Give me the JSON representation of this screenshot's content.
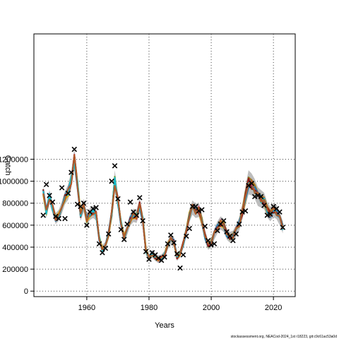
{
  "chart_data": {
    "type": "line",
    "xlabel": "Years",
    "ylabel": "Catch",
    "xlim": [
      1943,
      2027
    ],
    "ylim": [
      -50000,
      2340000
    ],
    "x_ticks": [
      1960,
      1980,
      2000,
      2020
    ],
    "y_ticks": [
      0,
      200000,
      400000,
      600000,
      800000,
      1000000,
      1200000
    ],
    "y_tick_labels": [
      "0",
      "200000",
      "400000",
      "600000",
      "800000",
      "1000000",
      "1200000"
    ],
    "grid": true,
    "credit": "stockassessment.org, NEACod-2024_1st r18223, git:c9c61ac53a0d",
    "band_color": "#bdbdbd",
    "series_colors": [
      "#1b9e77",
      "#7570b3",
      "#e7298a",
      "#66a61e",
      "#e6ab02",
      "#a6761d",
      "#1f78b4",
      "#8b1a1a",
      "#17becf",
      "#b15928"
    ],
    "years": [
      1946,
      1947,
      1948,
      1949,
      1950,
      1951,
      1952,
      1953,
      1954,
      1955,
      1956,
      1957,
      1958,
      1959,
      1960,
      1961,
      1962,
      1963,
      1964,
      1965,
      1966,
      1967,
      1968,
      1969,
      1970,
      1971,
      1972,
      1973,
      1974,
      1975,
      1976,
      1977,
      1978,
      1979,
      1980,
      1981,
      1982,
      1983,
      1984,
      1985,
      1986,
      1987,
      1988,
      1989,
      1990,
      1991,
      1992,
      1993,
      1994,
      1995,
      1996,
      1997,
      1998,
      1999,
      2000,
      2001,
      2002,
      2003,
      2004,
      2005,
      2006,
      2007,
      2008,
      2009,
      2010,
      2011,
      2012,
      2013,
      2014,
      2015,
      2016,
      2017,
      2018,
      2019,
      2020,
      2021,
      2022,
      2023
    ],
    "estimated_catch": [
      900000,
      720000,
      860000,
      760000,
      660000,
      690000,
      760000,
      850000,
      900000,
      1010000,
      1200000,
      970000,
      700000,
      780000,
      650000,
      700000,
      720000,
      700000,
      480000,
      380000,
      410000,
      520000,
      700000,
      1000000,
      820000,
      620000,
      490000,
      560000,
      650000,
      690000,
      680000,
      780000,
      650000,
      370000,
      300000,
      340000,
      310000,
      290000,
      300000,
      330000,
      420000,
      470000,
      450000,
      310000,
      340000,
      430000,
      550000,
      690000,
      760000,
      730000,
      740000,
      640000,
      500000,
      420000,
      440000,
      520000,
      580000,
      620000,
      600000,
      520000,
      490000,
      500000,
      550000,
      610000,
      720000,
      860000,
      990000,
      970000,
      930000,
      860000,
      840000,
      820000,
      740000,
      700000,
      740000,
      720000,
      660000,
      580000
    ],
    "band_half_width": [
      60000,
      55000,
      60000,
      55000,
      50000,
      50000,
      55000,
      60000,
      70000,
      80000,
      100000,
      80000,
      60000,
      60000,
      55000,
      55000,
      55000,
      55000,
      45000,
      40000,
      40000,
      50000,
      60000,
      100000,
      70000,
      55000,
      45000,
      50000,
      55000,
      60000,
      60000,
      65000,
      55000,
      40000,
      35000,
      35000,
      35000,
      35000,
      35000,
      35000,
      40000,
      45000,
      45000,
      35000,
      35000,
      40000,
      50000,
      60000,
      65000,
      65000,
      65000,
      60000,
      50000,
      45000,
      45000,
      50000,
      55000,
      60000,
      60000,
      50000,
      50000,
      50000,
      55000,
      60000,
      70000,
      90000,
      110000,
      100000,
      90000,
      85000,
      80000,
      75000,
      70000,
      65000,
      65000,
      65000,
      60000,
      55000
    ],
    "observed_years": [
      1946,
      1947,
      1948,
      1949,
      1950,
      1951,
      1952,
      1953,
      1954,
      1955,
      1956,
      1957,
      1958,
      1959,
      1960,
      1961,
      1962,
      1963,
      1964,
      1965,
      1966,
      1967,
      1968,
      1969,
      1970,
      1971,
      1972,
      1973,
      1974,
      1975,
      1976,
      1977,
      1978,
      1979,
      1980,
      1981,
      1982,
      1983,
      1984,
      1985,
      1986,
      1987,
      1988,
      1989,
      1990,
      1991,
      1992,
      1993,
      1994,
      1995,
      1996,
      1997,
      1998,
      1999,
      2000,
      2001,
      2002,
      2003,
      2004,
      2005,
      2006,
      2007,
      2008,
      2009,
      2010,
      2011,
      2012,
      2013,
      2014,
      2015,
      2016,
      2017,
      2018,
      2019,
      2020,
      2021,
      2022,
      2023
    ],
    "observed_catch": [
      690000,
      970000,
      870000,
      810000,
      680000,
      660000,
      940000,
      660000,
      890000,
      1080000,
      1290000,
      790000,
      770000,
      800000,
      600000,
      720000,
      750000,
      760000,
      430000,
      350000,
      390000,
      520000,
      1000000,
      1140000,
      840000,
      560000,
      470000,
      610000,
      810000,
      720000,
      690000,
      850000,
      640000,
      360000,
      290000,
      350000,
      330000,
      300000,
      280000,
      310000,
      430000,
      510000,
      440000,
      340000,
      210000,
      330000,
      500000,
      570000,
      770000,
      770000,
      730000,
      740000,
      590000,
      460000,
      420000,
      430000,
      550000,
      610000,
      640000,
      540000,
      500000,
      460000,
      520000,
      610000,
      720000,
      730000,
      960000,
      980000,
      860000,
      870000,
      860000,
      780000,
      690000,
      700000,
      770000,
      750000,
      720000,
      580000
    ]
  }
}
